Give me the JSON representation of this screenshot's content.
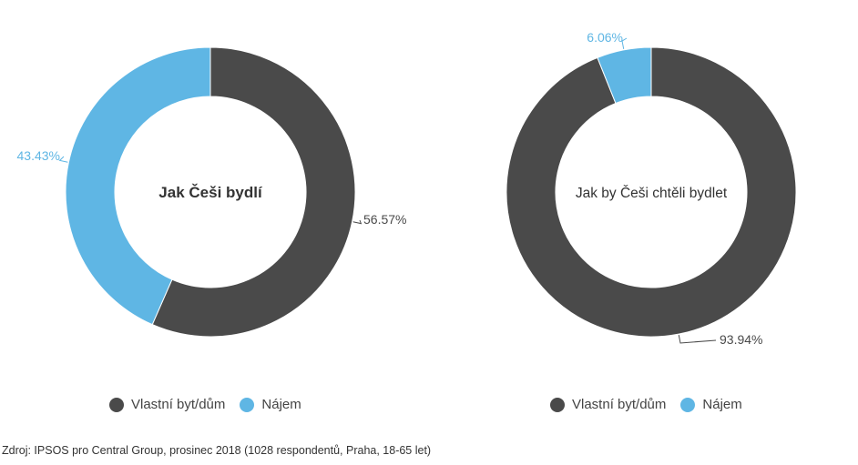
{
  "chart_data": [
    {
      "type": "pie",
      "title": "Jak Češi bydlí",
      "categories": [
        "Vlastní byt/dům",
        "Nájem"
      ],
      "values": [
        56.57,
        43.43
      ],
      "value_labels": [
        "56.57%",
        "43.43%"
      ],
      "colors": [
        "#4a4a4a",
        "#5fb6e4"
      ],
      "legend_position": "bottom"
    },
    {
      "type": "pie",
      "title": "Jak by Češi chtěli bydlet",
      "categories": [
        "Vlastní byt/dům",
        "Nájem"
      ],
      "values": [
        93.94,
        6.06
      ],
      "value_labels": [
        "93.94%",
        "6.06%"
      ],
      "colors": [
        "#4a4a4a",
        "#5fb6e4"
      ],
      "legend_position": "bottom"
    }
  ],
  "source": "Zdroj: IPSOS  pro Central Group, prosinec 2018 (1028 respondentů, Praha, 18-65 let)"
}
